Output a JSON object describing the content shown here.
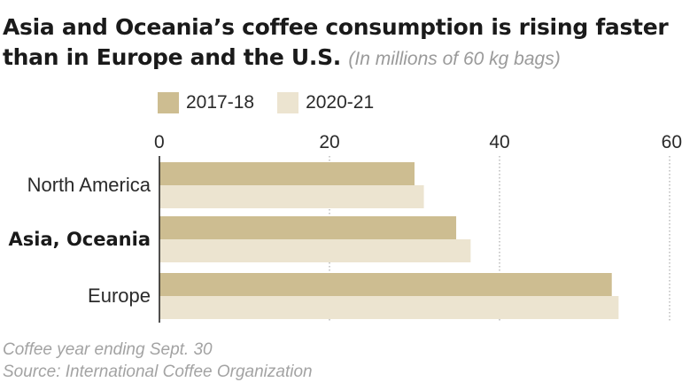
{
  "title_main": "Asia and Oceania’s coffee consumption is rising faster than in Europe and the U.S.",
  "title_sub": "(In millions of 60 kg bags)",
  "legend": [
    {
      "label": "2017-18",
      "color": "#cdbd91"
    },
    {
      "label": "2020-21",
      "color": "#ece4d0"
    }
  ],
  "footnotes": {
    "note": "Coffee year ending Sept. 30",
    "source": "Source: International Coffee Organization"
  },
  "chart_data": {
    "type": "bar",
    "orientation": "horizontal",
    "categories": [
      "North America",
      "Asia, Oceania",
      "Europe"
    ],
    "bold_categories": [
      "Asia, Oceania"
    ],
    "series": [
      {
        "name": "2017-18",
        "values": [
          30.0,
          34.9,
          53.2
        ],
        "color": "#cdbd91"
      },
      {
        "name": "2020-21",
        "values": [
          31.1,
          36.6,
          54.0
        ],
        "color": "#ece4d0"
      }
    ],
    "xlim": [
      0,
      60
    ],
    "x_ticks": [
      0,
      20,
      40,
      60
    ],
    "tick_labels": [
      "0",
      "20",
      "40",
      "60"
    ],
    "xlabel": "",
    "ylabel": "",
    "grid": "vertical dotted",
    "legend_position": "top"
  }
}
